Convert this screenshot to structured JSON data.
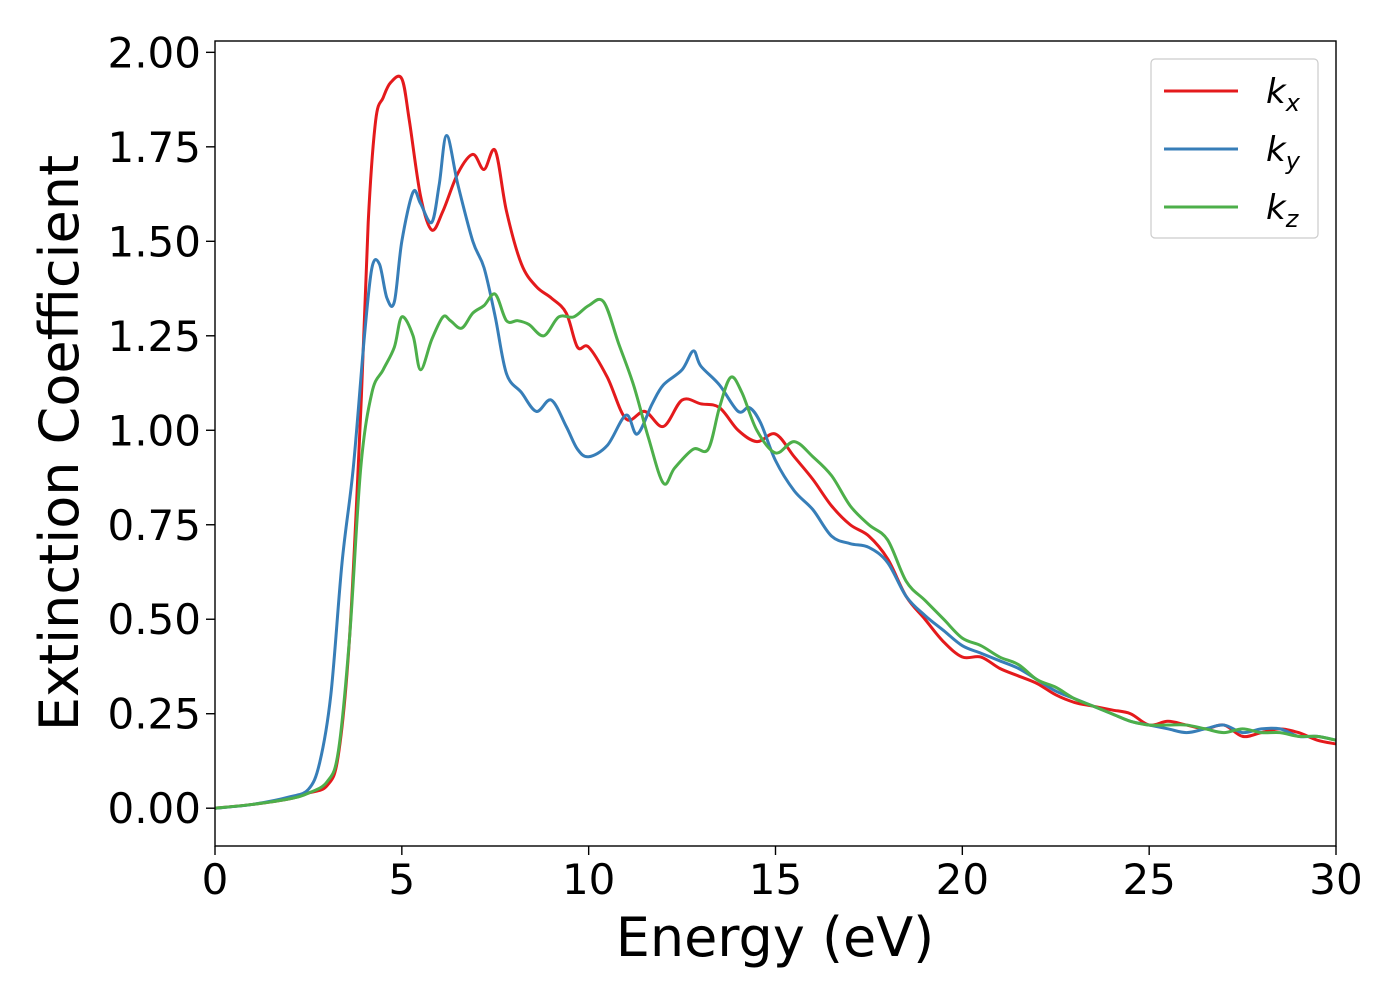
{
  "chart_data": {
    "type": "line",
    "xlabel": "Energy (eV)",
    "ylabel": "Extinction Coefficient",
    "xlim": [
      0,
      30
    ],
    "ylim": [
      -0.1,
      2.03
    ],
    "xticks": [
      0,
      5,
      10,
      15,
      20,
      25,
      30
    ],
    "xtick_labels": [
      "0",
      "5",
      "10",
      "15",
      "20",
      "25",
      "30"
    ],
    "yticks": [
      0,
      0.25,
      0.5,
      0.75,
      1.0,
      1.25,
      1.5,
      1.75,
      2.0
    ],
    "ytick_labels": [
      "0.00",
      "0.25",
      "0.50",
      "0.75",
      "1.00",
      "1.25",
      "1.50",
      "1.75",
      "2.00"
    ],
    "grid": false,
    "legend_position": "top-right",
    "series": [
      {
        "name": "k",
        "subscript": "x",
        "color": "#e41a1c",
        "x": [
          0,
          1,
          2,
          2.5,
          3,
          3.3,
          3.6,
          3.9,
          4.1,
          4.3,
          4.5,
          4.7,
          5.0,
          5.2,
          5.5,
          5.8,
          6.1,
          6.5,
          6.9,
          7.2,
          7.5,
          7.8,
          8.2,
          8.6,
          9.0,
          9.4,
          9.7,
          10.0,
          10.5,
          11.0,
          11.5,
          12.0,
          12.5,
          13.0,
          13.5,
          14.0,
          14.5,
          15.0,
          15.5,
          16.0,
          16.5,
          17.0,
          17.5,
          18.0,
          18.5,
          19.0,
          19.5,
          20.0,
          20.5,
          21.0,
          21.5,
          22.0,
          22.5,
          23.0,
          23.5,
          24.0,
          24.5,
          25.0,
          25.5,
          26.0,
          26.5,
          27.0,
          27.5,
          28.0,
          28.5,
          29.0,
          29.5,
          30.0
        ],
        "y": [
          0,
          0.01,
          0.025,
          0.04,
          0.06,
          0.14,
          0.45,
          1.05,
          1.55,
          1.82,
          1.88,
          1.92,
          1.93,
          1.82,
          1.62,
          1.53,
          1.58,
          1.68,
          1.73,
          1.69,
          1.74,
          1.58,
          1.44,
          1.38,
          1.35,
          1.31,
          1.22,
          1.22,
          1.14,
          1.03,
          1.05,
          1.01,
          1.08,
          1.07,
          1.06,
          1.0,
          0.97,
          0.99,
          0.93,
          0.87,
          0.8,
          0.75,
          0.72,
          0.66,
          0.56,
          0.5,
          0.44,
          0.4,
          0.4,
          0.37,
          0.35,
          0.33,
          0.3,
          0.28,
          0.27,
          0.26,
          0.25,
          0.22,
          0.23,
          0.22,
          0.21,
          0.22,
          0.19,
          0.2,
          0.21,
          0.2,
          0.18,
          0.17
        ]
      },
      {
        "name": "k",
        "subscript": "y",
        "color": "#377eb8",
        "x": [
          0,
          1,
          2,
          2.5,
          2.8,
          3.1,
          3.4,
          3.7,
          4.0,
          4.2,
          4.4,
          4.6,
          4.8,
          5.0,
          5.3,
          5.5,
          5.8,
          6.0,
          6.2,
          6.5,
          6.9,
          7.2,
          7.5,
          7.8,
          8.2,
          8.6,
          9.0,
          9.4,
          9.7,
          10.0,
          10.5,
          11.0,
          11.3,
          11.7,
          12.0,
          12.5,
          12.8,
          13.0,
          13.5,
          14.0,
          14.3,
          14.6,
          15.0,
          15.5,
          16.0,
          16.5,
          17.0,
          17.5,
          18.0,
          18.5,
          19.0,
          19.5,
          20.0,
          20.5,
          21.0,
          21.5,
          22.0,
          22.5,
          23.0,
          23.5,
          24.0,
          24.5,
          25.0,
          25.5,
          26.0,
          26.5,
          27.0,
          27.5,
          28.0,
          28.5,
          29.0,
          29.5,
          30.0
        ],
        "y": [
          0,
          0.01,
          0.03,
          0.05,
          0.12,
          0.3,
          0.65,
          0.9,
          1.25,
          1.43,
          1.44,
          1.35,
          1.34,
          1.5,
          1.63,
          1.6,
          1.55,
          1.65,
          1.78,
          1.65,
          1.5,
          1.43,
          1.3,
          1.15,
          1.1,
          1.05,
          1.08,
          1.01,
          0.95,
          0.93,
          0.96,
          1.04,
          0.99,
          1.07,
          1.12,
          1.16,
          1.21,
          1.17,
          1.12,
          1.05,
          1.06,
          1.02,
          0.92,
          0.84,
          0.79,
          0.72,
          0.7,
          0.69,
          0.65,
          0.56,
          0.51,
          0.47,
          0.43,
          0.41,
          0.39,
          0.37,
          0.34,
          0.31,
          0.29,
          0.27,
          0.25,
          0.23,
          0.22,
          0.21,
          0.2,
          0.21,
          0.22,
          0.2,
          0.21,
          0.21,
          0.19,
          0.19,
          0.18
        ]
      },
      {
        "name": "k",
        "subscript": "z",
        "color": "#4daf4a",
        "x": [
          0,
          1,
          2,
          2.5,
          3,
          3.3,
          3.6,
          3.9,
          4.2,
          4.5,
          4.8,
          5.0,
          5.3,
          5.5,
          5.8,
          6.1,
          6.3,
          6.6,
          6.9,
          7.2,
          7.5,
          7.8,
          8.1,
          8.4,
          8.8,
          9.2,
          9.6,
          10.0,
          10.4,
          10.8,
          11.2,
          11.6,
          12.0,
          12.3,
          12.8,
          13.2,
          13.5,
          13.8,
          14.1,
          14.5,
          15.0,
          15.5,
          16.0,
          16.5,
          17.0,
          17.5,
          18.0,
          18.5,
          19.0,
          19.5,
          20.0,
          20.5,
          21.0,
          21.5,
          22.0,
          22.5,
          23.0,
          23.5,
          24.0,
          24.5,
          25.0,
          25.5,
          26.0,
          26.5,
          27.0,
          27.5,
          28.0,
          28.5,
          29.0,
          29.5,
          30.0
        ],
        "y": [
          0,
          0.01,
          0.025,
          0.04,
          0.07,
          0.15,
          0.45,
          0.9,
          1.1,
          1.16,
          1.22,
          1.3,
          1.25,
          1.16,
          1.24,
          1.3,
          1.29,
          1.27,
          1.31,
          1.33,
          1.36,
          1.29,
          1.29,
          1.28,
          1.25,
          1.3,
          1.3,
          1.33,
          1.34,
          1.23,
          1.12,
          0.98,
          0.86,
          0.9,
          0.95,
          0.95,
          1.06,
          1.14,
          1.1,
          1.0,
          0.94,
          0.97,
          0.93,
          0.88,
          0.8,
          0.75,
          0.71,
          0.6,
          0.55,
          0.5,
          0.45,
          0.43,
          0.4,
          0.38,
          0.34,
          0.32,
          0.29,
          0.27,
          0.25,
          0.23,
          0.22,
          0.22,
          0.22,
          0.21,
          0.2,
          0.21,
          0.2,
          0.2,
          0.19,
          0.19,
          0.18
        ]
      }
    ]
  }
}
